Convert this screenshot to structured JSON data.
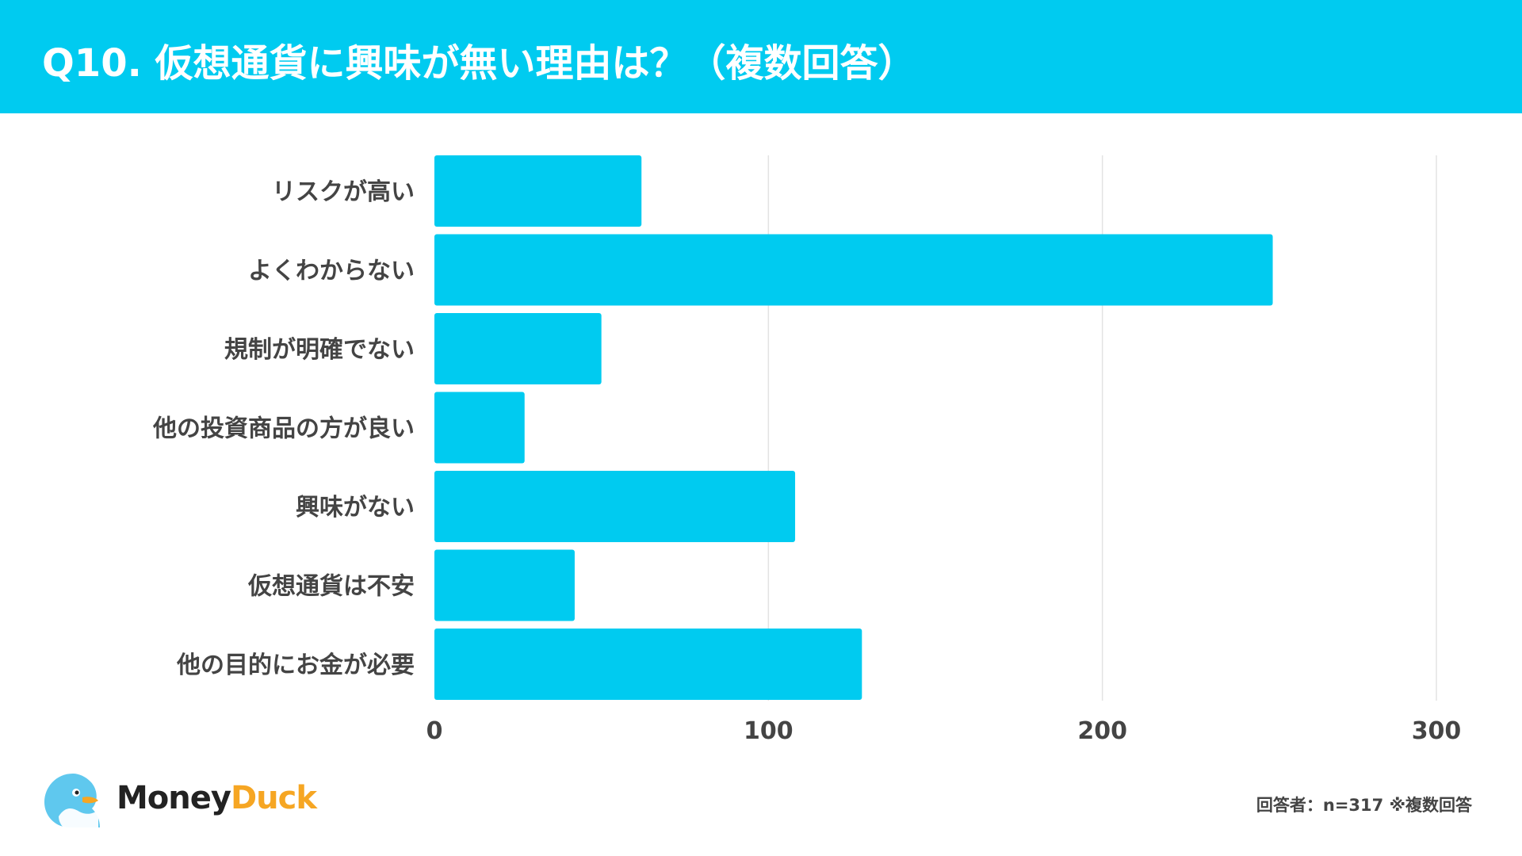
{
  "header": {
    "title": "Q10. 仮想通貨に興味が無い理由は？（複数回答）",
    "background": "#00CBF0"
  },
  "chart_data": {
    "type": "bar",
    "orientation": "horizontal",
    "categories": [
      "リスクが高い",
      "よくわからない",
      "規制が明確でない",
      "他の投資商品の方が良い",
      "興味がない",
      "仮想通貨は不安",
      "他の目的にお金が必要"
    ],
    "values": [
      62,
      251,
      50,
      27,
      108,
      42,
      128
    ],
    "xlim": [
      0,
      300
    ],
    "xticks": [
      0,
      100,
      200,
      300
    ],
    "grid": true,
    "bar_color": "#00CBF0",
    "title": "",
    "xlabel": "",
    "ylabel": ""
  },
  "footer": {
    "logo_money": "Money",
    "logo_duck": "Duck",
    "note": "回答者：n=317 ※複数回答"
  }
}
